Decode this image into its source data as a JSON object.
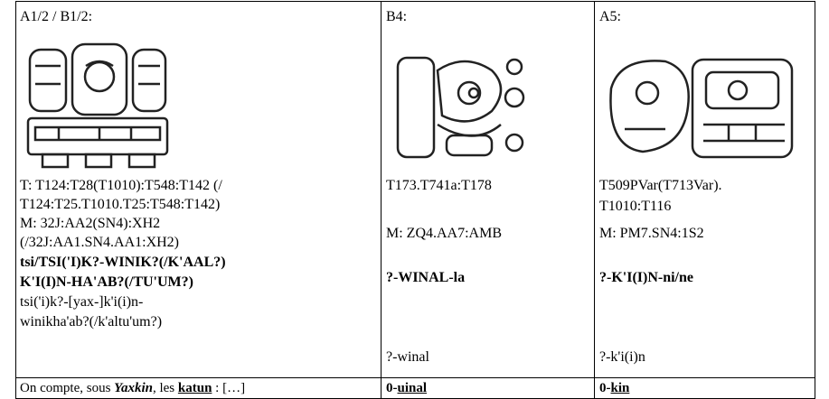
{
  "table": {
    "rows": [
      [
        {
          "heading": "A1/2 / B1/2:",
          "catalog": [
            "T: T124:T28(T1010):T548:T142 (/",
            "T124:T25.T1010.T25:T548:T142)"
          ],
          "mayan": [
            "M: 32J:AA2(SN4):XH2",
            "(/32J:AA1.SN4.AA1:XH2)"
          ],
          "reading": [
            "tsi/TSI('I)K?-WINIK?(/K'AAL?)",
            "K'I(I)N-HA'AB?(/TU'UM?)"
          ],
          "transcription": [
            "tsi('i)k?-[yax-]k'i(i)n-",
            "winikha'ab?(/k'altu'um?)"
          ]
        },
        {
          "heading": "B4:",
          "catalog": [
            "T173.T741a:T178"
          ],
          "mayan": [
            "M: ZQ4.AA7:AMB"
          ],
          "reading": [
            "?-WINAL-la"
          ],
          "transcription": [
            "?-winal"
          ]
        },
        {
          "heading": "A5:",
          "catalog": [
            "T509PVar(T713Var).",
            "T1010:T116"
          ],
          "mayan": [
            "M: PM7.SN4:1S2"
          ],
          "reading": [
            "?-K'I(I)N-ni/ne"
          ],
          "transcription": [
            "?-k'i(i)n"
          ]
        }
      ],
      [
        {
          "parts": [
            "On compte, sous ",
            "Yaxkin",
            ", les ",
            "katun",
            " : […]"
          ]
        },
        {
          "parts": [
            "0-",
            "uinal"
          ]
        },
        {
          "parts": [
            "0-",
            "kin"
          ]
        }
      ]
    ]
  }
}
